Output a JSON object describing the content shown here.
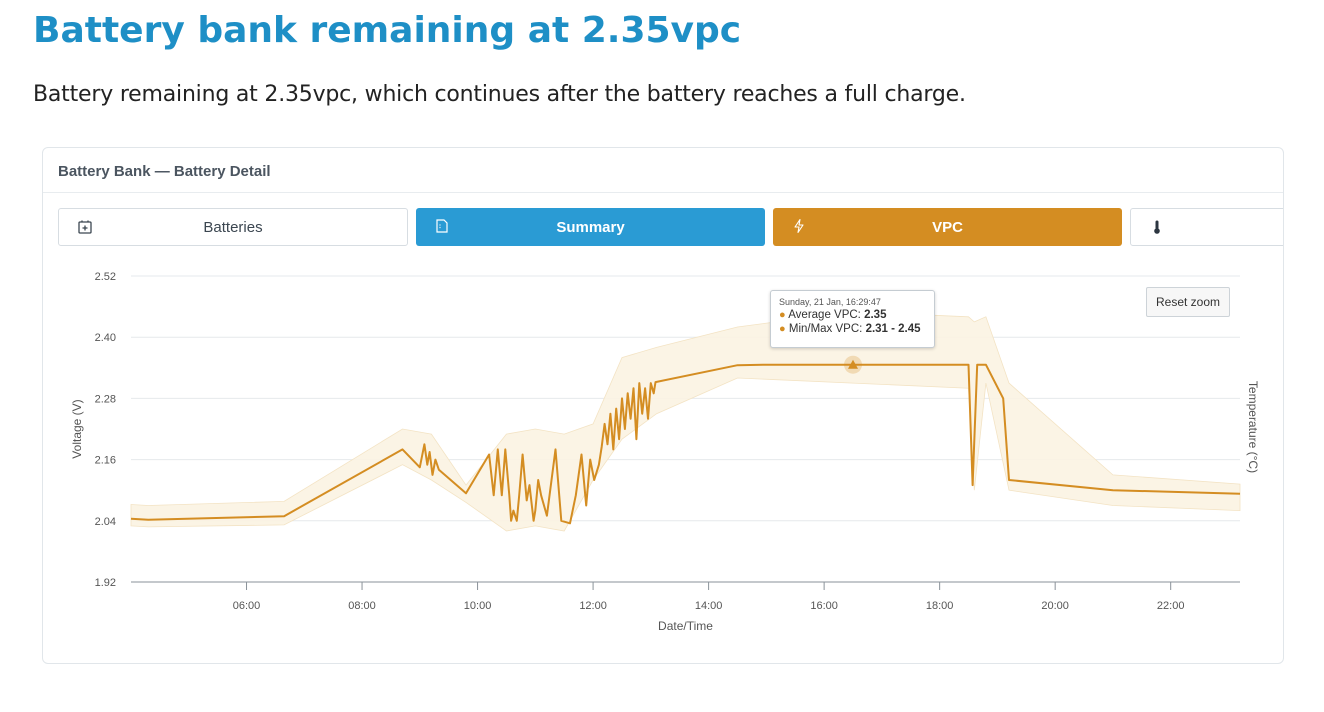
{
  "page": {
    "title": "Battery bank remaining at 2.35vpc",
    "description": "Battery remaining at 2.35vpc, which continues after the battery reaches a full charge."
  },
  "panel": {
    "title": "Battery Bank — Battery Detail",
    "tabs": [
      {
        "label": "Batteries",
        "icon": "battery-add-icon",
        "state": "inactive"
      },
      {
        "label": "Summary",
        "icon": "document-icon",
        "state": "active-blue"
      },
      {
        "label": "VPC",
        "icon": "lightning-icon",
        "state": "active-orange"
      },
      {
        "label": "",
        "icon": "thermometer-icon",
        "state": "inactive"
      }
    ],
    "reset_zoom_label": "Reset zoom"
  },
  "tooltip": {
    "date": "Sunday, 21 Jan, 16:29:47",
    "avg_label": "Average VPC:",
    "avg_value": "2.35",
    "minmax_label": "Min/Max VPC:",
    "minmax_value": "2.31 - 2.45"
  },
  "colors": {
    "title": "#1e8fc6",
    "summary_tab": "#2a9bd4",
    "vpc_tab": "#d48d22",
    "series_line": "#d48d22",
    "range_band": "#fbf3e2"
  },
  "chart_data": {
    "type": "line",
    "xlabel": "Date/Time",
    "ylabel": "Voltage (V)",
    "y2label": "Temperature (°C)",
    "ylim": [
      1.92,
      2.52
    ],
    "yticks": [
      "2.52",
      "2.40",
      "2.28",
      "2.16",
      "2.04",
      "1.92"
    ],
    "xlim_hours": [
      4.0,
      23.2
    ],
    "xticks": [
      "06:00",
      "08:00",
      "10:00",
      "12:00",
      "14:00",
      "16:00",
      "18:00",
      "20:00",
      "22:00"
    ],
    "grid": true,
    "series": [
      {
        "name": "Average VPC",
        "x_hours": [
          4.0,
          4.3,
          6.65,
          8.7,
          9.0,
          9.08,
          9.13,
          9.17,
          9.22,
          9.27,
          9.33,
          9.8,
          10.2,
          10.28,
          10.35,
          10.42,
          10.48,
          10.55,
          10.58,
          10.62,
          10.68,
          10.72,
          10.78,
          10.85,
          10.9,
          10.97,
          11.0,
          11.05,
          11.1,
          11.2,
          11.35,
          11.45,
          11.6,
          11.7,
          11.8,
          11.88,
          11.95,
          12.02,
          12.1,
          12.15,
          12.2,
          12.25,
          12.3,
          12.35,
          12.4,
          12.45,
          12.5,
          12.55,
          12.6,
          12.65,
          12.7,
          12.75,
          12.8,
          12.85,
          12.9,
          12.95,
          13.0,
          13.05,
          13.08,
          14.5,
          15.0,
          16.5,
          18.5,
          18.57,
          18.65,
          18.8,
          19.1,
          19.2,
          21.0,
          23.2
        ],
        "y": [
          2.044,
          2.042,
          2.049,
          2.18,
          2.145,
          2.19,
          2.15,
          2.175,
          2.13,
          2.16,
          2.14,
          2.094,
          2.17,
          2.09,
          2.18,
          2.09,
          2.18,
          2.09,
          2.04,
          2.06,
          2.04,
          2.09,
          2.17,
          2.08,
          2.11,
          2.04,
          2.06,
          2.12,
          2.09,
          2.05,
          2.18,
          2.04,
          2.035,
          2.09,
          2.17,
          2.07,
          2.16,
          2.12,
          2.15,
          2.185,
          2.23,
          2.19,
          2.25,
          2.18,
          2.26,
          2.2,
          2.28,
          2.22,
          2.29,
          2.24,
          2.3,
          2.2,
          2.31,
          2.25,
          2.3,
          2.24,
          2.31,
          2.29,
          2.312,
          2.345,
          2.346,
          2.346,
          2.346,
          2.11,
          2.346,
          2.346,
          2.28,
          2.12,
          2.1,
          2.093
        ]
      }
    ],
    "range_band": {
      "name": "Min/Max VPC",
      "x_hours": [
        4.0,
        4.3,
        6.65,
        8.7,
        9.2,
        9.8,
        10.5,
        11.0,
        11.5,
        12.0,
        12.5,
        13.1,
        14.5,
        16.5,
        18.5,
        18.6,
        18.8,
        19.2,
        21.0,
        23.2
      ],
      "upper": [
        2.072,
        2.07,
        2.078,
        2.22,
        2.21,
        2.11,
        2.21,
        2.22,
        2.21,
        2.23,
        2.36,
        2.38,
        2.42,
        2.45,
        2.44,
        2.43,
        2.44,
        2.31,
        2.13,
        2.112
      ],
      "lower": [
        2.03,
        2.028,
        2.032,
        2.15,
        2.12,
        2.076,
        2.02,
        2.03,
        2.02,
        2.12,
        2.2,
        2.25,
        2.32,
        2.31,
        2.3,
        2.1,
        2.31,
        2.1,
        2.07,
        2.06
      ]
    },
    "highlighted_point": {
      "x_hour": 16.5,
      "y": 2.346
    }
  }
}
